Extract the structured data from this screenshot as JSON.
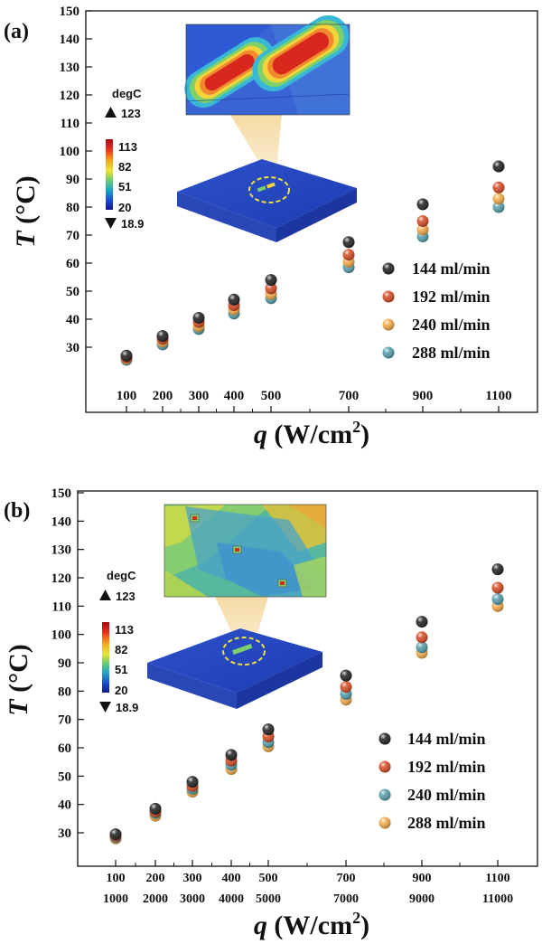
{
  "colors": {
    "s144": "#1a1a1a",
    "s192": "#d5451c",
    "s240a": "#f2a844",
    "s288a": "#4e9ba8",
    "s240b": "#4e9ba8",
    "s288b": "#f2a844"
  },
  "chart_data": [
    {
      "type": "scatter",
      "panel_label": "(a)",
      "x_tick_labels": [
        "100",
        "200",
        "300",
        "400",
        "500",
        "700",
        "900",
        "1100"
      ],
      "x_tick_labels_2": [],
      "xlabel": "q (W/cm²)",
      "xlabel_var": "q",
      "xlabel_unit": " (W/cm",
      "xlabel_sup": "2",
      "xlabel_close": ")",
      "ylabel": "T (°C)",
      "ylabel_var": "T",
      "ylabel_unit": " (°C)",
      "ylim": [
        20,
        150
      ],
      "y_ticks": [
        30,
        40,
        50,
        60,
        70,
        80,
        90,
        100,
        110,
        120,
        130,
        140,
        150
      ],
      "grid": false,
      "legend_position": "right",
      "x": [
        100,
        200,
        300,
        400,
        500,
        700,
        900,
        1100
      ],
      "series": [
        {
          "name": "144 ml/min",
          "color_key": "s144",
          "values": [
            27.0,
            34.0,
            40.5,
            47.0,
            54.0,
            67.5,
            81.0,
            94.5
          ]
        },
        {
          "name": "192 ml/min",
          "color_key": "s192",
          "values": [
            26.5,
            33.0,
            39.0,
            45.0,
            51.0,
            63.0,
            75.0,
            87.0
          ]
        },
        {
          "name": "240 ml/min",
          "color_key": "s240a",
          "values": [
            26.0,
            32.0,
            37.5,
            43.5,
            49.0,
            60.5,
            72.0,
            83.0
          ]
        },
        {
          "name": "288 ml/min",
          "color_key": "s288a",
          "values": [
            25.5,
            31.0,
            36.5,
            42.0,
            47.5,
            58.5,
            69.5,
            80.0
          ]
        }
      ],
      "colorbar": {
        "title": "degC",
        "max": "123",
        "min": "18.9",
        "ticks": [
          "113",
          "82",
          "51",
          "20"
        ]
      }
    },
    {
      "type": "scatter",
      "panel_label": "(b)",
      "x_tick_labels": [
        "100",
        "200",
        "300",
        "400",
        "500",
        "700",
        "900",
        "1100"
      ],
      "x_tick_labels_2": [
        "1000",
        "2000",
        "3000",
        "4000",
        "5000",
        "7000",
        "9000",
        "11000"
      ],
      "xlabel": "q (W/cm²)",
      "xlabel_var": "q",
      "xlabel_unit": " (W/cm",
      "xlabel_sup": "2",
      "xlabel_close": ")",
      "ylabel": "T (°C)",
      "ylabel_var": "T",
      "ylabel_unit": " (°C)",
      "ylim": [
        20,
        150
      ],
      "y_ticks": [
        30,
        40,
        50,
        60,
        70,
        80,
        90,
        100,
        110,
        120,
        130,
        140,
        150
      ],
      "grid": false,
      "legend_position": "right",
      "x": [
        100,
        200,
        300,
        400,
        500,
        700,
        900,
        1100
      ],
      "series": [
        {
          "name": "144 ml/min",
          "color_key": "s144",
          "values": [
            29.5,
            38.5,
            48.0,
            57.5,
            66.5,
            85.5,
            104.5,
            123.0
          ]
        },
        {
          "name": "192 ml/min",
          "color_key": "s192",
          "values": [
            29.0,
            37.5,
            46.5,
            55.5,
            64.0,
            81.5,
            99.0,
            116.5
          ]
        },
        {
          "name": "240 ml/min",
          "color_key": "s240b",
          "values": [
            28.5,
            37.0,
            45.5,
            54.0,
            62.0,
            79.0,
            95.5,
            112.5
          ]
        },
        {
          "name": "288 ml/min",
          "color_key": "s288b",
          "values": [
            28.0,
            36.0,
            44.5,
            52.5,
            60.5,
            77.0,
            93.5,
            110.0
          ]
        }
      ],
      "colorbar": {
        "title": "degC",
        "max": "123",
        "min": "18.9",
        "ticks": [
          "113",
          "82",
          "51",
          "20"
        ]
      }
    }
  ]
}
